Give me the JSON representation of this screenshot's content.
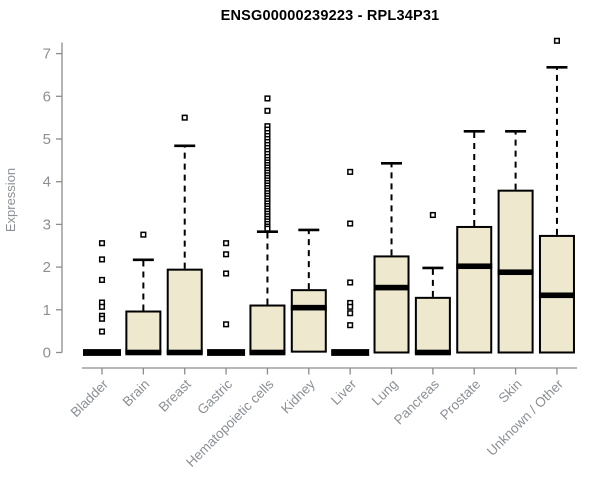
{
  "title": "ENSG00000239223 - RPL34P31",
  "colors": {
    "box_fill": "#ede8ce",
    "box_line": "#000000",
    "axis_line": "#8c8c8c",
    "axis_text": "#8b9095",
    "background": "#ffffff"
  },
  "chart_data": {
    "type": "boxplot",
    "title": "ENSG00000239223 - RPL34P31",
    "ylabel": "Expression",
    "xlabel": "",
    "ylim": [
      0,
      7.3
    ],
    "yticks": [
      0,
      1,
      2,
      3,
      4,
      5,
      6,
      7
    ],
    "grid": false,
    "legend": "none",
    "categories": [
      "Bladder",
      "Brain",
      "Breast",
      "Gastric",
      "Hematopoietic cells",
      "Kidney",
      "Liver",
      "Lung",
      "Pancreas",
      "Prostate",
      "Skin",
      "Unknown / Other"
    ],
    "series": [
      {
        "category": "Bladder",
        "q1": 0,
        "median": 0,
        "q3": 0,
        "whisker_low": 0,
        "whisker_high": 0,
        "outliers": [
          2.56,
          2.18,
          1.7,
          1.17,
          1.07,
          0.86,
          0.79,
          0.49
        ]
      },
      {
        "category": "Brain",
        "q1": 0,
        "median": 0,
        "q3": 0.96,
        "whisker_low": 0,
        "whisker_high": 2.17,
        "outliers": [
          2.76
        ]
      },
      {
        "category": "Breast",
        "q1": 0,
        "median": 0,
        "q3": 1.94,
        "whisker_low": 0,
        "whisker_high": 4.84,
        "outliers": [
          5.5
        ]
      },
      {
        "category": "Gastric",
        "q1": 0,
        "median": 0,
        "q3": 0,
        "whisker_low": 0,
        "whisker_high": 0,
        "outliers": [
          2.56,
          2.3,
          1.85,
          0.66
        ]
      },
      {
        "category": "Hematopoietic cells",
        "q1": 0,
        "median": 0,
        "q3": 1.1,
        "whisker_low": 0,
        "whisker_high": 2.83,
        "outliers": [
          5.95,
          5.66,
          5.3,
          5.22,
          5.14,
          5.07,
          5.0,
          4.93,
          4.86,
          4.79,
          4.72,
          4.65,
          4.58,
          4.51,
          4.45,
          4.39,
          4.33,
          4.27,
          4.21,
          4.15,
          4.09,
          4.03,
          3.97,
          3.91,
          3.85,
          3.79,
          3.73,
          3.67,
          3.61,
          3.55,
          3.49,
          3.43,
          3.37,
          3.31,
          3.25,
          3.19,
          3.13,
          3.07,
          3.01,
          2.95,
          2.9
        ]
      },
      {
        "category": "Kidney",
        "q1": 0.02,
        "median": 1.05,
        "q3": 1.46,
        "whisker_low": 0.02,
        "whisker_high": 2.87,
        "outliers": []
      },
      {
        "category": "Liver",
        "q1": 0,
        "median": 0,
        "q3": 0,
        "whisker_low": 0,
        "whisker_high": 0,
        "outliers": [
          4.23,
          3.02,
          1.64,
          1.16,
          1.07,
          0.92,
          0.64
        ]
      },
      {
        "category": "Lung",
        "q1": 0,
        "median": 1.52,
        "q3": 2.25,
        "whisker_low": 0,
        "whisker_high": 4.43,
        "outliers": []
      },
      {
        "category": "Pancreas",
        "q1": 0,
        "median": 0,
        "q3": 1.28,
        "whisker_low": 0,
        "whisker_high": 1.98,
        "outliers": [
          3.22
        ]
      },
      {
        "category": "Prostate",
        "q1": 0,
        "median": 2.02,
        "q3": 2.94,
        "whisker_low": 0,
        "whisker_high": 5.18,
        "outliers": []
      },
      {
        "category": "Skin",
        "q1": 0,
        "median": 1.88,
        "q3": 3.79,
        "whisker_low": 0,
        "whisker_high": 5.18,
        "outliers": []
      },
      {
        "category": "Unknown / Other",
        "q1": 0,
        "median": 1.34,
        "q3": 2.73,
        "whisker_low": 0,
        "whisker_high": 6.68,
        "outliers": [
          7.3
        ]
      }
    ]
  }
}
